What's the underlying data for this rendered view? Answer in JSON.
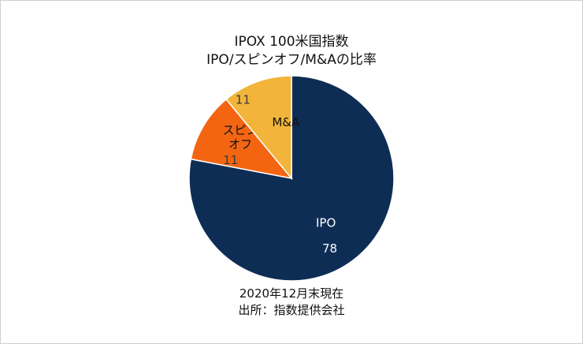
{
  "chart_data": {
    "type": "pie",
    "title": "IPOX 100米国指数",
    "subtitle": "IPO/スピンオフ/M&Aの比率",
    "slices": [
      {
        "label": "IPO",
        "label_lines": [
          "IPO"
        ],
        "value": 78,
        "color": "#0e2d55",
        "text_color": "#ffffff"
      },
      {
        "label": "スピンオフ",
        "label_lines": [
          "スピン",
          "オフ"
        ],
        "value": 11,
        "color": "#f46511",
        "text_color": "#111111"
      },
      {
        "label": "M&A",
        "label_lines": [
          "M&A"
        ],
        "value": 11,
        "color": "#f2b43a",
        "text_color": "#111111"
      }
    ],
    "start_angle_deg": 90,
    "direction": "clockwise"
  },
  "notes": {
    "date": "2020年12月末現在",
    "source": "出所：指数提供会社"
  }
}
